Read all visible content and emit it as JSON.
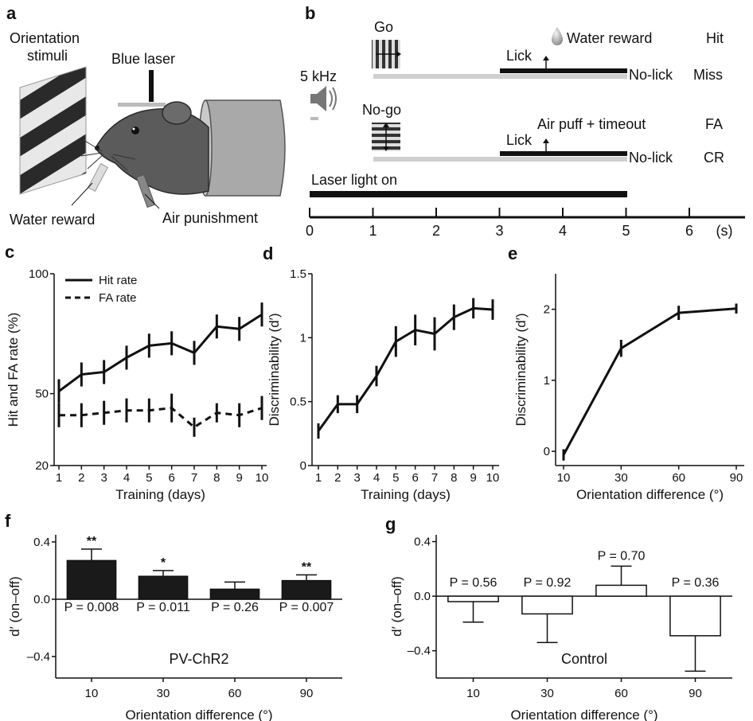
{
  "panels": {
    "a": "a",
    "b": "b",
    "c": "c",
    "d": "d",
    "e": "e",
    "f": "f",
    "g": "g"
  },
  "panel_a": {
    "orientation_stimuli_line1": "Orientation",
    "orientation_stimuli_line2": "stimuli",
    "blue_laser": "Blue laser",
    "water_reward": "Water reward",
    "air_punishment": "Air punishment"
  },
  "panel_b": {
    "go": "Go",
    "no_go": "No-go",
    "tone": "5 kHz",
    "water_reward": "Water reward",
    "air_puff": "Air puff + timeout",
    "lick": "Lick",
    "no_lick": "No-lick",
    "hit": "Hit",
    "miss": "Miss",
    "fa": "FA",
    "cr": "CR",
    "laser_on": "Laser light on",
    "time_ticks": [
      "0",
      "1",
      "2",
      "3",
      "4",
      "5",
      "6"
    ],
    "time_unit": "(s)"
  },
  "chart_data": [
    {
      "panel": "c",
      "type": "line",
      "xlabel": "Training (days)",
      "ylabel": "Hit and FA rate (%)",
      "x": [
        1,
        2,
        3,
        4,
        5,
        6,
        7,
        8,
        9,
        10
      ],
      "ylim": [
        20,
        100
      ],
      "yticks": [
        20,
        50,
        100
      ],
      "series": [
        {
          "name": "Hit rate",
          "style": "solid",
          "values": [
            51,
            58,
            59,
            65,
            70,
            71,
            67,
            78,
            77,
            83
          ],
          "err": [
            5,
            5,
            5,
            5,
            5,
            5,
            5,
            5,
            5,
            5
          ]
        },
        {
          "name": "FA rate",
          "style": "dashed",
          "values": [
            41,
            41,
            42,
            43,
            43,
            44,
            36,
            42,
            41,
            44
          ],
          "err": [
            5,
            5,
            5,
            5,
            5,
            6,
            4,
            4,
            5,
            5
          ]
        }
      ]
    },
    {
      "panel": "d",
      "type": "line",
      "xlabel": "Training (days)",
      "ylabel": "Discriminability (d′)",
      "x": [
        1,
        2,
        3,
        4,
        5,
        6,
        7,
        8,
        9,
        10
      ],
      "ylim": [
        0,
        1.5
      ],
      "yticks": [
        "0",
        "0.5",
        "1",
        "1.5"
      ],
      "series": [
        {
          "values": [
            0.27,
            0.48,
            0.48,
            0.7,
            0.97,
            1.06,
            1.03,
            1.16,
            1.23,
            1.22
          ],
          "err": [
            0.06,
            0.07,
            0.07,
            0.08,
            0.12,
            0.12,
            0.13,
            0.1,
            0.08,
            0.08
          ]
        }
      ]
    },
    {
      "panel": "e",
      "type": "line",
      "xlabel": "Orientation difference (°)",
      "ylabel": "Discriminability (d′)",
      "x": [
        "10",
        "30",
        "60",
        "90"
      ],
      "ylim": [
        -0.2,
        2.5
      ],
      "yticks": [
        "0",
        "1",
        "2"
      ],
      "series": [
        {
          "values": [
            -0.05,
            1.45,
            1.95,
            2.01
          ],
          "err": [
            0.08,
            0.12,
            0.1,
            0.07
          ]
        }
      ]
    },
    {
      "panel": "f",
      "type": "bar",
      "xlabel": "Orientation difference (°)",
      "ylabel": "d′ (on–off)",
      "label": "PV-ChR2",
      "categories": [
        "10",
        "30",
        "60",
        "90"
      ],
      "values": [
        0.27,
        0.16,
        0.07,
        0.13
      ],
      "err": [
        0.08,
        0.04,
        0.05,
        0.04
      ],
      "p_values": [
        "P = 0.008",
        "P = 0.011",
        "P = 0.26",
        "P = 0.007"
      ],
      "stars": [
        "**",
        "*",
        "",
        "**"
      ],
      "ylim": [
        -0.55,
        0.45
      ],
      "yticks": [
        "0.4",
        "0.0",
        "–0.4"
      ],
      "fill": "#1a1a1a"
    },
    {
      "panel": "g",
      "type": "bar",
      "xlabel": "Orientation difference (°)",
      "ylabel": "d′ (on–off)",
      "label": "Control",
      "categories": [
        "10",
        "30",
        "60",
        "90"
      ],
      "values": [
        -0.04,
        -0.13,
        0.08,
        -0.29
      ],
      "err": [
        0.15,
        0.21,
        0.14,
        0.26
      ],
      "p_values": [
        "P = 0.56",
        "P = 0.92",
        "P = 0.70",
        "P = 0.36"
      ],
      "ylim": [
        -0.6,
        0.45
      ],
      "yticks": [
        "0.4",
        "0.0",
        "–0.4"
      ],
      "fill": "#ffffff"
    }
  ]
}
